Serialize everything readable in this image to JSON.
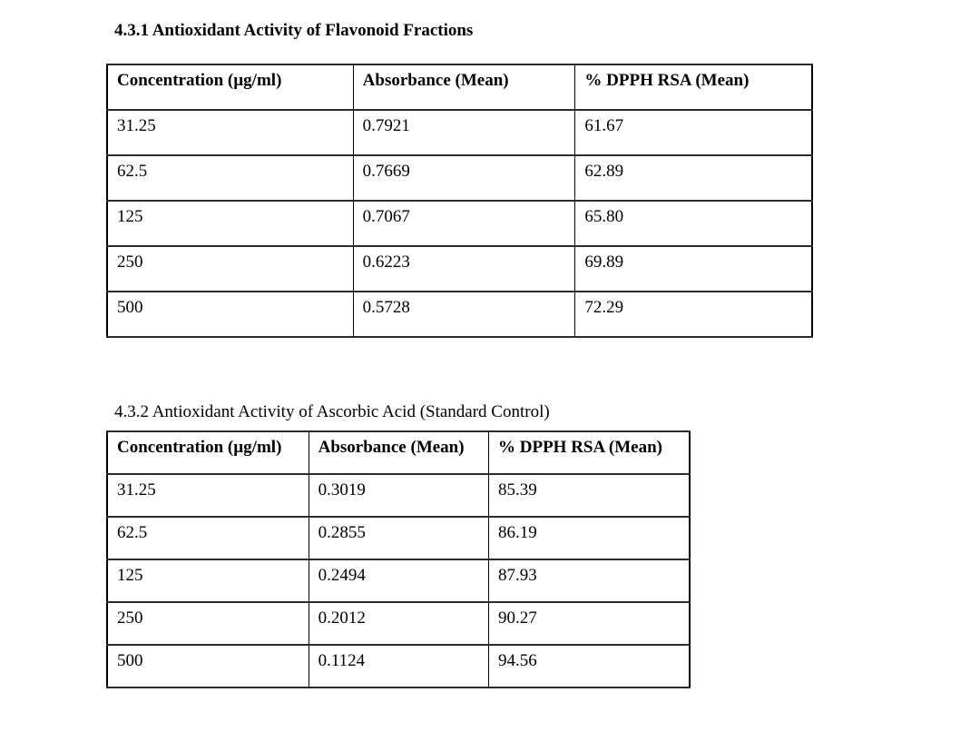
{
  "page": {
    "background_color": "#ffffff",
    "text_color": "#000000",
    "table_border_color": "#000000"
  },
  "section_flavonoid": {
    "heading": "4.3.1 Antioxidant Activity of Flavonoid Fractions",
    "table": {
      "headers": [
        "Concentration (µg/ml)",
        "Absorbance (Mean)",
        "% DPPH RSA (Mean)"
      ],
      "rows": [
        [
          "31.25",
          "0.7921",
          "61.67"
        ],
        [
          "62.5",
          "0.7669",
          "62.89"
        ],
        [
          "125",
          "0.7067",
          "65.80"
        ],
        [
          "250",
          "0.6223",
          "69.89"
        ],
        [
          "500",
          "0.5728",
          "72.29"
        ]
      ]
    }
  },
  "section_ascorbic": {
    "heading": "4.3.2 Antioxidant Activity of Ascorbic Acid (Standard Control)",
    "table": {
      "headers": [
        "Concentration (µg/ml)",
        "Absorbance (Mean)",
        "% DPPH RSA (Mean)"
      ],
      "rows": [
        [
          "31.25",
          "0.3019",
          "85.39"
        ],
        [
          "62.5",
          "0.2855",
          "86.19"
        ],
        [
          "125",
          "0.2494",
          "87.93"
        ],
        [
          "250",
          "0.2012",
          "90.27"
        ],
        [
          "500",
          "0.1124",
          "94.56"
        ]
      ]
    }
  }
}
